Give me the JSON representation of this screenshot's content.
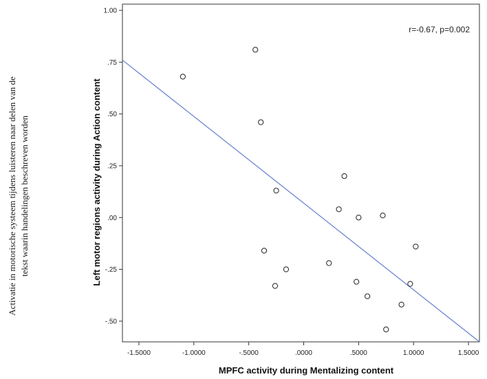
{
  "side_caption": {
    "line1": "Activatie in motorische systeem tijdens luisteren naar delen van de",
    "line2": "tekst waarin handelingen beschreven worden"
  },
  "chart_data": {
    "type": "scatter",
    "xlabel": "MPFC activity during Mentalizing content",
    "ylabel": "Left motor regions activity during Action content",
    "annotation": "r=-0.67, p=0.002",
    "xlim": [
      -1.65,
      1.6
    ],
    "ylim": [
      -0.6,
      1.03
    ],
    "x_ticks": [
      -1.5,
      -1.0,
      -0.5,
      0.0,
      0.5,
      1.0,
      1.5
    ],
    "x_tick_labels": [
      "-1.5000",
      "-1.0000",
      "-.5000",
      ".0000",
      ".5000",
      "1.0000",
      "1.5000"
    ],
    "y_ticks": [
      -0.5,
      -0.25,
      0.0,
      0.25,
      0.5,
      0.75,
      1.0
    ],
    "y_tick_labels": [
      "-.50",
      "-.25",
      ".00",
      ".25",
      ".50",
      ".75",
      "1.00"
    ],
    "grid": false,
    "points": [
      {
        "x": -1.1,
        "y": 0.68
      },
      {
        "x": -0.44,
        "y": 0.81
      },
      {
        "x": -0.39,
        "y": 0.46
      },
      {
        "x": -0.25,
        "y": 0.13
      },
      {
        "x": -0.36,
        "y": -0.16
      },
      {
        "x": -0.16,
        "y": -0.25
      },
      {
        "x": -0.26,
        "y": -0.33
      },
      {
        "x": 0.23,
        "y": -0.22
      },
      {
        "x": 0.32,
        "y": 0.04
      },
      {
        "x": 0.37,
        "y": 0.2
      },
      {
        "x": 0.5,
        "y": 0.0
      },
      {
        "x": 0.48,
        "y": -0.31
      },
      {
        "x": 0.58,
        "y": -0.38
      },
      {
        "x": 0.72,
        "y": 0.01
      },
      {
        "x": 0.75,
        "y": -0.54
      },
      {
        "x": 0.89,
        "y": -0.42
      },
      {
        "x": 0.97,
        "y": -0.32
      },
      {
        "x": 1.02,
        "y": -0.14
      }
    ],
    "fit_line": {
      "x": [
        -1.65,
        1.6
      ],
      "y": [
        0.76,
        -0.6
      ]
    },
    "colors": {
      "fit_line": "#6b86cf",
      "points": "#333333",
      "frame": "#333333"
    }
  }
}
